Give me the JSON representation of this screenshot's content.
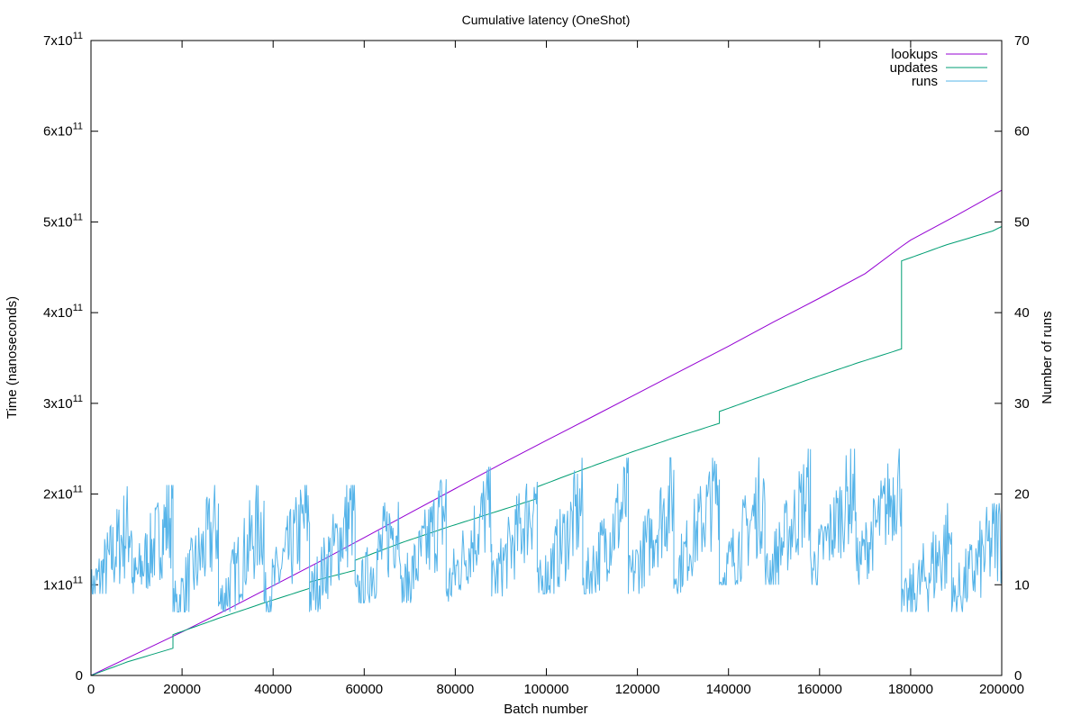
{
  "chart_data": {
    "type": "line",
    "title": "Cumulative latency (OneShot)",
    "xlabel": "Batch number",
    "ylabel": "Time (nanoseconds)",
    "y2label": "Number of runs",
    "xlim": [
      0,
      200000
    ],
    "ylim": [
      0,
      700000000000
    ],
    "y2lim": [
      0,
      70
    ],
    "x_ticks": [
      0,
      20000,
      40000,
      60000,
      80000,
      100000,
      120000,
      140000,
      160000,
      180000,
      200000
    ],
    "x_tick_labels": [
      "0",
      "20000",
      "40000",
      "60000",
      "80000",
      "100000",
      "120000",
      "140000",
      "160000",
      "180000",
      "200000"
    ],
    "y_ticks": [
      0,
      100000000000,
      200000000000,
      300000000000,
      400000000000,
      500000000000,
      600000000000,
      700000000000
    ],
    "y_tick_labels": [
      {
        "base": "0",
        "exp": ""
      },
      {
        "base": "1x10",
        "exp": "11"
      },
      {
        "base": "2x10",
        "exp": "11"
      },
      {
        "base": "3x10",
        "exp": "11"
      },
      {
        "base": "4x10",
        "exp": "11"
      },
      {
        "base": "5x10",
        "exp": "11"
      },
      {
        "base": "6x10",
        "exp": "11"
      },
      {
        "base": "7x10",
        "exp": "11"
      }
    ],
    "y2_ticks": [
      0,
      10,
      20,
      30,
      40,
      50,
      60,
      70
    ],
    "y2_tick_labels": [
      "0",
      "10",
      "20",
      "30",
      "40",
      "50",
      "60",
      "70"
    ],
    "legend_position": "top-right",
    "series": [
      {
        "name": "lookups",
        "axis": "y1",
        "color": "#9400d3",
        "x": [
          0,
          10000,
          20000,
          30000,
          40000,
          50000,
          60000,
          70000,
          80000,
          90000,
          100000,
          110000,
          120000,
          130000,
          140000,
          150000,
          160000,
          170000,
          178000,
          180000,
          190000,
          200000
        ],
        "values": [
          0,
          24000000000,
          48000000000,
          73000000000,
          99000000000,
          125000000000,
          152000000000,
          179000000000,
          206000000000,
          233000000000,
          259000000000,
          285000000000,
          311000000000,
          337000000000,
          363000000000,
          390000000000,
          416000000000,
          443000000000,
          473000000000,
          480000000000,
          507000000000,
          535000000000
        ]
      },
      {
        "name": "updates",
        "axis": "y1",
        "color": "#009e73",
        "x": [
          0,
          8000,
          18000,
          18001,
          28000,
          38000,
          48000,
          48001,
          58000,
          58001,
          68000,
          78000,
          88000,
          98000,
          98001,
          108000,
          118000,
          128000,
          138000,
          138001,
          148000,
          158000,
          168000,
          178000,
          178001,
          188000,
          198000,
          200000
        ],
        "values": [
          0,
          15000000000,
          30000000000,
          45000000000,
          63000000000,
          80000000000,
          96000000000,
          103000000000,
          116000000000,
          127000000000,
          146000000000,
          163000000000,
          179000000000,
          195000000000,
          208000000000,
          227000000000,
          245000000000,
          262000000000,
          278000000000,
          291000000000,
          309000000000,
          327000000000,
          344000000000,
          360000000000,
          457000000000,
          475000000000,
          490000000000,
          495000000000
        ]
      },
      {
        "name": "runs",
        "axis": "y2",
        "color": "#56b4e9",
        "cycles": [
          {
            "start": 0,
            "end": 18000,
            "low": 9,
            "high": 17,
            "top": 21
          },
          {
            "start": 18000,
            "end": 58000,
            "low": 7,
            "high": 17,
            "top": 21
          },
          {
            "start": 58000,
            "end": 98000,
            "low": 8,
            "high": 18,
            "top": 23
          },
          {
            "start": 98000,
            "end": 138000,
            "low": 9,
            "high": 19,
            "top": 24
          },
          {
            "start": 138000,
            "end": 178000,
            "low": 10,
            "high": 20,
            "top": 25
          },
          {
            "start": 178000,
            "end": 200000,
            "low": 7,
            "high": 15,
            "top": 19
          }
        ]
      }
    ]
  }
}
